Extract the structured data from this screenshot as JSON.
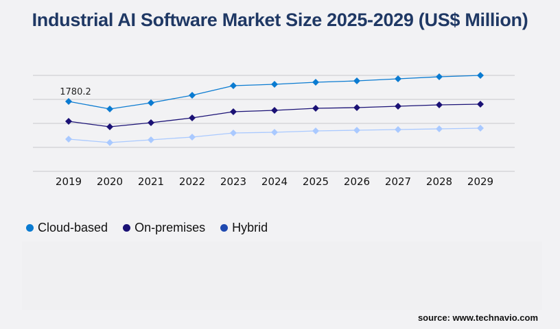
{
  "chart_data": {
    "type": "line",
    "title": "Industrial AI Software Market Size 2025-2029 (US$ Million)",
    "categories": [
      "2019",
      "2020",
      "2021",
      "2022",
      "2023",
      "2024",
      "2025",
      "2026",
      "2027",
      "2028",
      "2029"
    ],
    "series": [
      {
        "name": "Cloud-based",
        "color": "#0a7bd1",
        "values": [
          1780.2,
          1588,
          1745,
          1937,
          2181,
          2216,
          2269,
          2303,
          2356,
          2408,
          2443
        ]
      },
      {
        "name": "On-premises",
        "color": "#1a1175",
        "values": [
          1274,
          1134,
          1239,
          1361,
          1518,
          1553,
          1605,
          1623,
          1658,
          1693,
          1710
        ]
      },
      {
        "name": "Hybrid",
        "color": "#a9c9ff",
        "legend_color": "#1f49b0",
        "values": [
          820,
          733,
          803,
          873,
          977,
          995,
          1030,
          1047,
          1065,
          1082,
          1099
        ]
      }
    ],
    "annotations": [
      {
        "series": "Cloud-based",
        "category": "2019",
        "text": "1780.2"
      }
    ],
    "ylim": [
      0,
      2443
    ],
    "y_tick_labels_shown": false,
    "grid": true,
    "legend_placement": "bottom-left"
  },
  "source": "source: www.technavio.com"
}
